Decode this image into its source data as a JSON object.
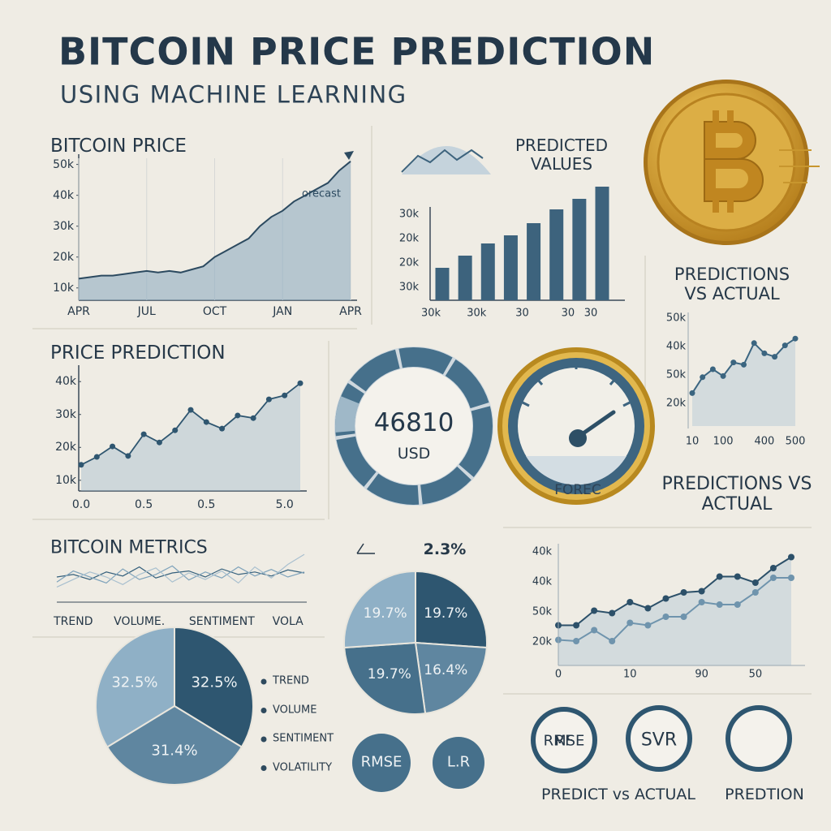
{
  "header": {
    "title": "BITCOIN PRICE PREDICTION",
    "subtitle": "USING MACHINE LEARNING"
  },
  "chart_data": [
    {
      "type": "line",
      "title": "BITCOIN PRICE",
      "annotation": "orecast",
      "color": "#2c4a60",
      "fill": "#8fadc1",
      "categories": [
        "APR",
        null,
        null,
        null,
        null,
        null,
        "JUL",
        null,
        null,
        null,
        null,
        null,
        "OCT",
        null,
        null,
        null,
        null,
        null,
        "JAN",
        null,
        null,
        null,
        null,
        null,
        "APR"
      ],
      "values": [
        13000,
        13500,
        14000,
        14000,
        14500,
        15000,
        15500,
        15000,
        15500,
        15000,
        16000,
        17000,
        20000,
        22000,
        24000,
        26000,
        30000,
        33000,
        35000,
        38000,
        40000,
        42000,
        44000,
        48000,
        51000
      ],
      "ylim": [
        6000,
        52000
      ],
      "yticks": [
        {
          "value": 10000,
          "label": "10k"
        },
        {
          "value": 20000,
          "label": "20k"
        },
        {
          "value": 30000,
          "label": "30k"
        },
        {
          "value": 40000,
          "label": "40k"
        },
        {
          "value": 50000,
          "label": "50k"
        }
      ]
    },
    {
      "type": "bar",
      "title": "PREDICTED VALUES",
      "color": "#3d637d",
      "categories": [
        "30k",
        null,
        "30k",
        null,
        "30",
        null,
        "30",
        "30"
      ],
      "values": [
        40,
        55,
        70,
        80,
        95,
        112,
        125,
        140
      ],
      "ylim": [
        0,
        150
      ],
      "y_labels": [
        "30k",
        "20k",
        "20k",
        "30k"
      ]
    },
    {
      "type": "line",
      "title": "PREDICTIONS VS ACTUAL",
      "color": "#3b6580",
      "fill": "#b7cad6",
      "categories": [
        "10",
        null,
        null,
        "100",
        null,
        null,
        null,
        "400",
        null,
        null,
        "500"
      ],
      "values": [
        29,
        43,
        50,
        44,
        56,
        54,
        73,
        64,
        61,
        71,
        77
      ],
      "ylim": [
        0,
        100
      ],
      "y_labels": [
        "50k",
        "40k",
        "50k",
        "20k"
      ]
    },
    {
      "type": "line",
      "title": "PRICE PREDICTION",
      "color": "#2f5670",
      "fill": "#a7bfcf",
      "categories": [
        "0.0",
        null,
        null,
        null,
        "0.5",
        null,
        null,
        null,
        "0.5",
        null,
        null,
        null,
        null,
        "5.0",
        null
      ],
      "values": [
        14700,
        17100,
        20300,
        17400,
        24000,
        21500,
        25200,
        31400,
        27700,
        25700,
        29700,
        28900,
        34600,
        35800,
        39500
      ],
      "ylim": [
        6750,
        43750
      ],
      "yticks": [
        {
          "value": 10000,
          "label": "10k"
        },
        {
          "value": 20000,
          "label": "20k"
        },
        {
          "value": 30000,
          "label": "30k"
        },
        {
          "value": 40000,
          "label": "40k"
        }
      ]
    },
    {
      "type": "line",
      "title": "BITCOIN METRICS",
      "categories": [
        null,
        "TREND",
        null,
        null,
        null,
        "VOLUME.",
        null,
        null,
        null,
        null,
        "SENTIMENT",
        null,
        null,
        null,
        "VOLA",
        null
      ],
      "series": [
        {
          "color": "#35607c",
          "values": [
            50,
            55,
            45,
            60,
            52,
            70,
            48,
            58,
            62,
            50,
            66,
            55,
            60,
            52,
            64,
            58
          ]
        },
        {
          "color": "#7fa3bb",
          "values": [
            40,
            62,
            50,
            38,
            66,
            45,
            55,
            72,
            44,
            60,
            48,
            70,
            52,
            65,
            50,
            60
          ]
        },
        {
          "color": "#a9c0cf",
          "values": [
            30,
            45,
            60,
            50,
            35,
            55,
            68,
            40,
            58,
            45,
            62,
            38,
            70,
            48,
            75,
            95
          ]
        }
      ],
      "ylim": [
        0,
        100
      ]
    },
    {
      "type": "pie",
      "values": [
        32.5,
        31.4,
        32.5
      ],
      "value_labels": [
        "32.5%",
        "31.4%",
        "32.5%"
      ],
      "colors": [
        "#2e5670",
        "#5f86a0",
        "#8fb0c6"
      ],
      "legend": [
        "TREND",
        "VOLUME",
        "SENTIMENT",
        "VOLATILITY"
      ],
      "legend_color": "#2e4a5e"
    },
    {
      "type": "pie",
      "values": [
        19.7,
        16.4,
        19.7,
        19.7
      ],
      "value_labels": [
        "19.7%",
        "16.4%",
        "19.7%",
        "19.7%"
      ],
      "colors": [
        "#2e5670",
        "#5f86a0",
        "#46708b",
        "#8fb0c6"
      ],
      "change": "2.3%"
    },
    {
      "type": "line",
      "title": "PREDICTIONS VS ACTUAL",
      "fill": "#b7cad6",
      "categories": [
        "0",
        null,
        null,
        null,
        "10",
        null,
        null,
        null,
        "90",
        null,
        null,
        "50",
        null,
        null
      ],
      "series": [
        {
          "color": "#2c5069",
          "values": [
            33,
            33,
            45,
            43,
            52,
            47,
            55,
            60,
            61,
            73,
            73,
            68,
            80,
            89
          ]
        },
        {
          "color": "#6f94ad",
          "values": [
            21,
            20,
            29,
            20,
            35,
            33,
            40,
            40,
            52,
            50,
            50,
            60,
            72,
            72
          ]
        }
      ],
      "ylim": [
        0,
        100
      ],
      "y_labels": [
        "40k",
        "40k",
        "50k",
        "20k"
      ]
    }
  ],
  "gauges": {
    "value": 46810,
    "unit": "USD",
    "forecast": "FOREC"
  },
  "badges": [
    "RMSE",
    "L.R",
    "RF",
    "SVR"
  ],
  "captions": [
    "PREDICT vs ACTUAL",
    "PREDTION"
  ]
}
